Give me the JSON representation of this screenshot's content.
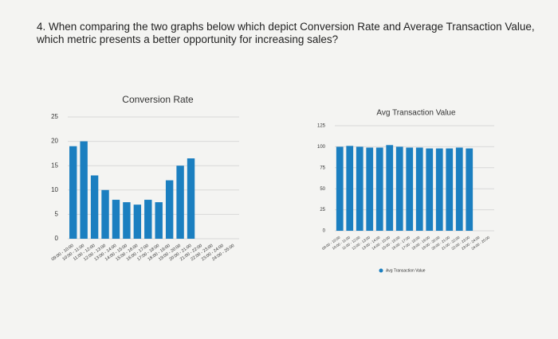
{
  "question": "4. When comparing the two graphs below which depict Conversion Rate and Average Transaction Value, which metric presents a better opportunity for increasing sales?",
  "chart_data": [
    {
      "type": "bar",
      "title": "Conversion Rate",
      "categories": [
        "09:00 - 10:00",
        "10:00 - 11:00",
        "11:00 - 12:00",
        "12:00 - 13:00",
        "13:00 - 14:00",
        "14:00 - 15:00",
        "15:00 - 16:00",
        "16:00 - 17:00",
        "17:00 - 18:00",
        "18:00 - 19:00",
        "19:00 - 20:00",
        "20:00 - 21:00",
        "21:00 - 22:00",
        "22:00 - 23:00",
        "23:00 - 24:00",
        "24:00 - 25:00"
      ],
      "values": [
        19,
        20,
        13,
        10,
        8,
        7.5,
        7,
        8,
        7.5,
        12,
        15,
        16.5,
        null,
        null,
        null,
        null
      ],
      "color": "#1b7fc0",
      "ylim": [
        0,
        25
      ],
      "yticks": [
        0,
        5,
        10,
        15,
        20,
        25
      ],
      "grid": true
    },
    {
      "type": "bar",
      "title": "Avg Transaction Value",
      "categories": [
        "09:00 - 10:00",
        "10:00 - 11:00",
        "11:00 - 12:00",
        "12:00 - 13:00",
        "13:00 - 14:00",
        "14:00 - 15:00",
        "15:00 - 16:00",
        "16:00 - 17:00",
        "17:00 - 18:00",
        "18:00 - 19:00",
        "19:00 - 20:00",
        "20:00 - 21:00",
        "21:00 - 22:00",
        "22:00 - 23:00",
        "23:00 - 24:00",
        "24:00 - 25:00"
      ],
      "series": [
        {
          "name": "Avg Transaction Value",
          "color": "#1b7fc0",
          "values": [
            100,
            101,
            100,
            99,
            99,
            102,
            100,
            99,
            99,
            98,
            98,
            98,
            99,
            98,
            null,
            null
          ]
        }
      ],
      "ylim": [
        0,
        125
      ],
      "yticks": [
        0,
        25,
        50,
        75,
        100,
        125
      ],
      "grid": true,
      "legend": "bottom"
    }
  ]
}
